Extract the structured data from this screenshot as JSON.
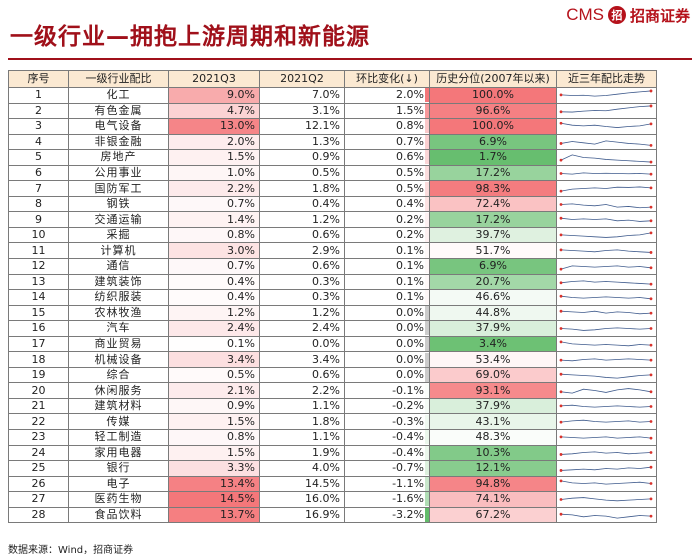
{
  "title": "一级行业—拥抱上游周期和新能源",
  "logo": {
    "cms": "CMS",
    "seal": "招",
    "name": "招商证券"
  },
  "headers": [
    "序号",
    "一级行业配比",
    "2021Q3",
    "2021Q2",
    "环比变化(↓)",
    "历史分位(2007年以来)",
    "近三年配比走势"
  ],
  "rows": [
    {
      "no": "1",
      "name": "化工",
      "q3": "9.0%",
      "q2": "7.0%",
      "chg": "2.0%",
      "pct": "100.0%"
    },
    {
      "no": "2",
      "name": "有色金属",
      "q3": "4.7%",
      "q2": "3.1%",
      "chg": "1.5%",
      "pct": "96.6%"
    },
    {
      "no": "3",
      "name": "电气设备",
      "q3": "13.0%",
      "q2": "12.1%",
      "chg": "0.8%",
      "pct": "100.0%"
    },
    {
      "no": "4",
      "name": "非银金融",
      "q3": "2.0%",
      "q2": "1.3%",
      "chg": "0.7%",
      "pct": "6.9%"
    },
    {
      "no": "5",
      "name": "房地产",
      "q3": "1.5%",
      "q2": "0.9%",
      "chg": "0.6%",
      "pct": "1.7%"
    },
    {
      "no": "6",
      "name": "公用事业",
      "q3": "1.0%",
      "q2": "0.5%",
      "chg": "0.5%",
      "pct": "17.2%"
    },
    {
      "no": "7",
      "name": "国防军工",
      "q3": "2.2%",
      "q2": "1.8%",
      "chg": "0.5%",
      "pct": "98.3%"
    },
    {
      "no": "8",
      "name": "钢铁",
      "q3": "0.7%",
      "q2": "0.4%",
      "chg": "0.4%",
      "pct": "72.4%"
    },
    {
      "no": "9",
      "name": "交通运输",
      "q3": "1.4%",
      "q2": "1.2%",
      "chg": "0.2%",
      "pct": "17.2%"
    },
    {
      "no": "10",
      "name": "采掘",
      "q3": "0.8%",
      "q2": "0.6%",
      "chg": "0.2%",
      "pct": "39.7%"
    },
    {
      "no": "11",
      "name": "计算机",
      "q3": "3.0%",
      "q2": "2.9%",
      "chg": "0.1%",
      "pct": "51.7%"
    },
    {
      "no": "12",
      "name": "通信",
      "q3": "0.7%",
      "q2": "0.6%",
      "chg": "0.1%",
      "pct": "6.9%"
    },
    {
      "no": "13",
      "name": "建筑装饰",
      "q3": "0.4%",
      "q2": "0.3%",
      "chg": "0.1%",
      "pct": "20.7%"
    },
    {
      "no": "14",
      "name": "纺织服装",
      "q3": "0.4%",
      "q2": "0.3%",
      "chg": "0.1%",
      "pct": "46.6%"
    },
    {
      "no": "15",
      "name": "农林牧渔",
      "q3": "1.2%",
      "q2": "1.2%",
      "chg": "0.0%",
      "pct": "44.8%"
    },
    {
      "no": "16",
      "name": "汽车",
      "q3": "2.4%",
      "q2": "2.4%",
      "chg": "0.0%",
      "pct": "37.9%"
    },
    {
      "no": "17",
      "name": "商业贸易",
      "q3": "0.1%",
      "q2": "0.0%",
      "chg": "0.0%",
      "pct": "3.4%"
    },
    {
      "no": "18",
      "name": "机械设备",
      "q3": "3.4%",
      "q2": "3.4%",
      "chg": "0.0%",
      "pct": "53.4%"
    },
    {
      "no": "19",
      "name": "综合",
      "q3": "0.5%",
      "q2": "0.6%",
      "chg": "0.0%",
      "pct": "69.0%"
    },
    {
      "no": "20",
      "name": "休闲服务",
      "q3": "2.1%",
      "q2": "2.2%",
      "chg": "-0.1%",
      "pct": "93.1%"
    },
    {
      "no": "21",
      "name": "建筑材料",
      "q3": "0.9%",
      "q2": "1.1%",
      "chg": "-0.2%",
      "pct": "37.9%"
    },
    {
      "no": "22",
      "name": "传媒",
      "q3": "1.5%",
      "q2": "1.8%",
      "chg": "-0.3%",
      "pct": "43.1%"
    },
    {
      "no": "23",
      "name": "轻工制造",
      "q3": "0.8%",
      "q2": "1.1%",
      "chg": "-0.4%",
      "pct": "48.3%"
    },
    {
      "no": "24",
      "name": "家用电器",
      "q3": "1.5%",
      "q2": "1.9%",
      "chg": "-0.4%",
      "pct": "10.3%"
    },
    {
      "no": "25",
      "name": "银行",
      "q3": "3.3%",
      "q2": "4.0%",
      "chg": "-0.7%",
      "pct": "12.1%"
    },
    {
      "no": "26",
      "name": "电子",
      "q3": "13.4%",
      "q2": "14.5%",
      "chg": "-1.1%",
      "pct": "94.8%"
    },
    {
      "no": "27",
      "name": "医药生物",
      "q3": "14.5%",
      "q2": "16.0%",
      "chg": "-1.6%",
      "pct": "74.1%"
    },
    {
      "no": "28",
      "name": "食品饮料",
      "q3": "13.7%",
      "q2": "16.9%",
      "chg": "-3.2%",
      "pct": "67.2%"
    }
  ],
  "colors": {
    "title": "#a0101a",
    "header_bg": "#fbe9d2",
    "high": "#f4777a",
    "low": "#62bc6a",
    "spark_line": "#3e5a8c",
    "spark_dot": "#d9322c",
    "neutral_bar": "#cccccc"
  },
  "footer": "数据来源：Wind，招商证券"
}
